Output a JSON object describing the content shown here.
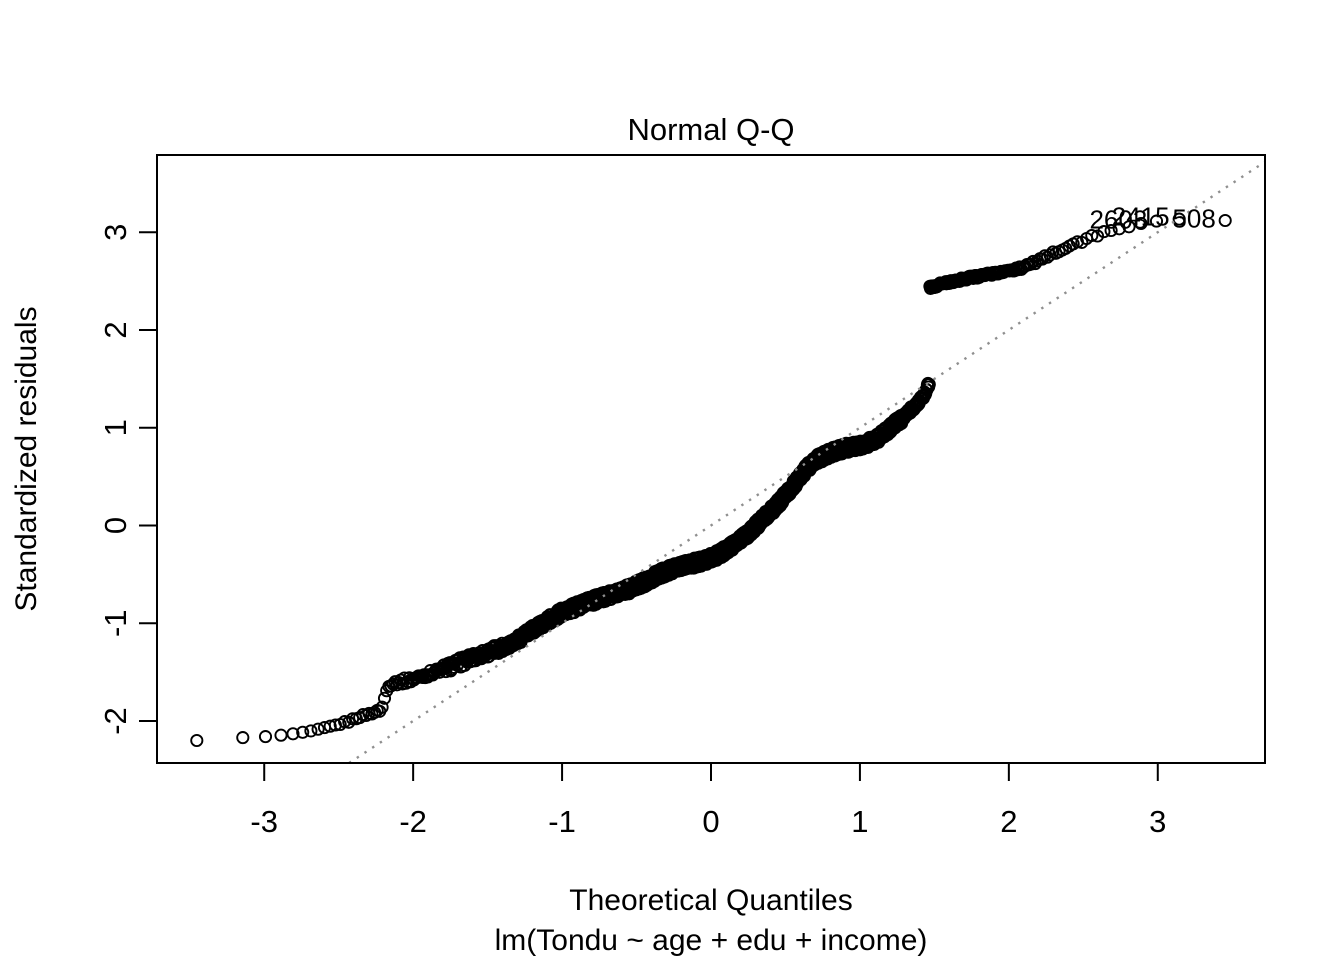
{
  "window": {
    "background": "#ffffff",
    "foreground": "#000000"
  },
  "title": "Normal Q-Q",
  "axes": {
    "x": {
      "label": "Theoretical Quantiles",
      "sublabel": "lm(Tondu ~ age + edu + income)",
      "tick_values": [
        -3,
        -2,
        -1,
        0,
        1,
        2,
        3
      ],
      "range": [
        -3.72,
        3.72
      ]
    },
    "y": {
      "label": "Standardized residuals",
      "tick_values": [
        -2,
        -1,
        0,
        1,
        2,
        3
      ],
      "range": [
        -2.43,
        3.79
      ]
    }
  },
  "chart_data": {
    "type": "scatter",
    "subtype": "normal-qq",
    "title": "Normal Q-Q",
    "xlabel": "Theoretical Quantiles",
    "ylabel": "Standardized residuals",
    "model": "lm(Tondu ~ age + edu + income)",
    "grid": "off",
    "n_points": 1800,
    "marker": {
      "shape": "open-circle",
      "radius_px": 5.6,
      "stroke_px": 1.9,
      "color": "#000000"
    },
    "reference_line": {
      "slope": 1,
      "intercept": 0,
      "style": "dotted",
      "color": "#8f8f8f"
    },
    "gap": {
      "lower_branch_max": 1.46,
      "upper_branch_min": 2.43,
      "at_quantile": 1.4665
    },
    "jitter_amplitude": 0.05,
    "lower_branch_anchors": [
      [
        -3.45,
        -2.2
      ],
      [
        -3.14,
        -2.17
      ],
      [
        -2.99,
        -2.16
      ],
      [
        -2.92,
        -2.15
      ],
      [
        -2.84,
        -2.14
      ],
      [
        -2.76,
        -2.12
      ],
      [
        -2.68,
        -2.1
      ],
      [
        -2.6,
        -2.07
      ],
      [
        -2.52,
        -2.04
      ],
      [
        -2.44,
        -2.01
      ],
      [
        -2.37,
        -1.96
      ],
      [
        -2.3,
        -1.93
      ],
      [
        -2.24,
        -1.9
      ],
      [
        -2.21,
        -1.87
      ],
      [
        -2.165,
        -1.62
      ],
      [
        -2.1,
        -1.6
      ],
      [
        -2.02,
        -1.58
      ],
      [
        -1.92,
        -1.53
      ],
      [
        -1.8,
        -1.47
      ],
      [
        -1.68,
        -1.4
      ],
      [
        -1.56,
        -1.33
      ],
      [
        -1.44,
        -1.27
      ],
      [
        -1.3,
        -1.17
      ],
      [
        -1.15,
        -1.02
      ],
      [
        -1.0,
        -0.89
      ],
      [
        -0.85,
        -0.8
      ],
      [
        -0.7,
        -0.72
      ],
      [
        -0.55,
        -0.65
      ],
      [
        -0.45,
        -0.58
      ],
      [
        -0.35,
        -0.5
      ],
      [
        -0.25,
        -0.44
      ],
      [
        -0.15,
        -0.4
      ],
      [
        -0.05,
        -0.36
      ],
      [
        0.05,
        -0.3
      ],
      [
        0.15,
        -0.2
      ],
      [
        0.25,
        -0.08
      ],
      [
        0.35,
        0.07
      ],
      [
        0.45,
        0.22
      ],
      [
        0.55,
        0.4
      ],
      [
        0.65,
        0.6
      ],
      [
        0.72,
        0.68
      ],
      [
        0.8,
        0.74
      ],
      [
        0.9,
        0.79
      ],
      [
        1.0,
        0.82
      ],
      [
        1.1,
        0.87
      ],
      [
        1.2,
        0.99
      ],
      [
        1.3,
        1.12
      ],
      [
        1.38,
        1.24
      ],
      [
        1.44,
        1.36
      ],
      [
        1.465,
        1.46
      ]
    ],
    "upper_branch_anchors": [
      [
        1.468,
        2.43
      ],
      [
        1.52,
        2.46
      ],
      [
        1.62,
        2.5
      ],
      [
        1.76,
        2.54
      ],
      [
        1.9,
        2.58
      ],
      [
        2.0,
        2.61
      ],
      [
        2.1,
        2.64
      ],
      [
        2.17,
        2.69
      ],
      [
        2.25,
        2.75
      ],
      [
        2.33,
        2.81
      ],
      [
        2.42,
        2.87
      ],
      [
        2.52,
        2.93
      ],
      [
        2.62,
        2.99
      ],
      [
        2.72,
        3.04
      ],
      [
        2.85,
        3.08
      ],
      [
        2.97,
        3.11
      ],
      [
        3.1,
        3.13
      ],
      [
        3.2,
        3.14
      ],
      [
        3.45,
        3.12
      ]
    ],
    "labeled_points": [
      {
        "label": "2603",
        "x": 2.99,
        "y": 3.11
      },
      {
        "label": "2415",
        "x": 3.14,
        "y": 3.14
      },
      {
        "label": "508",
        "x": 3.45,
        "y": 3.12
      }
    ]
  }
}
